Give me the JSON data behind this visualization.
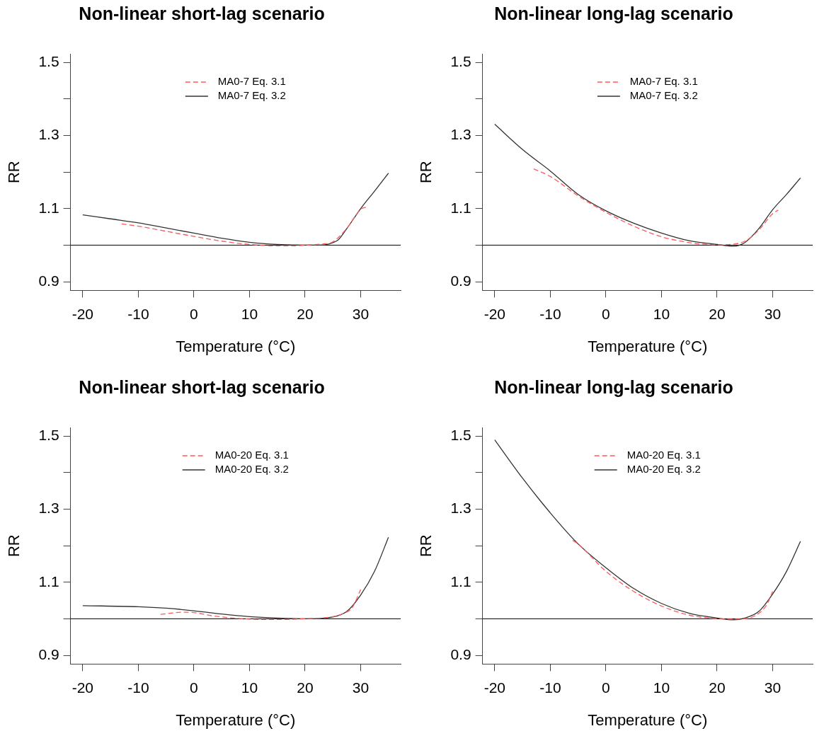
{
  "chart_data": [
    {
      "type": "line",
      "title": "Non-linear short-lag scenario",
      "xlabel": "Temperature (°C)",
      "ylabel": "RR",
      "xlim": [
        -22.2,
        37.2
      ],
      "ylim": [
        0.876,
        1.524
      ],
      "xticks": [
        -20,
        -10,
        0,
        10,
        20,
        30
      ],
      "yticks": [
        0.9,
        {
          "value": 1.0,
          "label": null
        },
        1.1,
        {
          "value": 1.2,
          "label": null
        },
        1.3,
        {
          "value": 1.4,
          "label": null
        },
        1.5
      ],
      "legend": "top",
      "ref_lines": [
        {
          "axis": "y",
          "value": 1,
          "color": "#000000"
        }
      ],
      "series": [
        {
          "name": "MA0-7 Eq. 3.1",
          "color": "#ff5a5a",
          "line_style": "dashed",
          "x": [
            -13,
            -10,
            -5,
            0,
            5,
            10,
            15,
            18,
            20,
            23,
            25,
            27.5,
            30,
            31
          ],
          "values": [
            1.058,
            1.052,
            1.038,
            1.024,
            1.011,
            1.002,
            0.998,
            0.998,
            1.0,
            1.003,
            1.009,
            1.046,
            1.098,
            1.104
          ]
        },
        {
          "name": "MA0-7 Eq. 3.2",
          "color": "#333333",
          "line_style": "solid",
          "x": [
            -20,
            -15,
            -10,
            -5,
            0,
            5,
            10,
            15,
            20,
            22.5,
            24,
            25,
            26,
            27.5,
            30,
            32.5,
            35
          ],
          "values": [
            1.083,
            1.072,
            1.061,
            1.047,
            1.033,
            1.019,
            1.008,
            1.002,
            1.0,
            1.0,
            1.002,
            1.007,
            1.015,
            1.045,
            1.1,
            1.148,
            1.197
          ]
        }
      ]
    },
    {
      "type": "line",
      "title": "Non-linear long-lag scenario",
      "xlabel": "Temperature (°C)",
      "ylabel": "RR",
      "xlim": [
        -22.2,
        37.2
      ],
      "ylim": [
        0.876,
        1.524
      ],
      "xticks": [
        -20,
        -10,
        0,
        10,
        20,
        30
      ],
      "yticks": [
        0.9,
        {
          "value": 1.0,
          "label": null
        },
        1.1,
        {
          "value": 1.2,
          "label": null
        },
        1.3,
        {
          "value": 1.4,
          "label": null
        },
        1.5
      ],
      "legend": "top",
      "ref_lines": [
        {
          "axis": "y",
          "value": 1,
          "color": "#000000"
        }
      ],
      "series": [
        {
          "name": "MA0-7 Eq. 3.1",
          "color": "#ff5a5a",
          "line_style": "dashed",
          "x": [
            -13,
            -10,
            -5,
            0,
            5,
            10,
            15,
            20,
            22.5,
            25,
            27.5,
            30,
            31
          ],
          "values": [
            1.209,
            1.188,
            1.135,
            1.09,
            1.052,
            1.023,
            1.007,
            1.001,
            1.002,
            1.011,
            1.041,
            1.086,
            1.096
          ]
        },
        {
          "name": "MA0-7 Eq. 3.2",
          "color": "#333333",
          "line_style": "solid",
          "x": [
            -20,
            -15,
            -10,
            -5,
            0,
            5,
            10,
            15,
            20,
            23,
            25,
            27.5,
            30,
            32.5,
            35
          ],
          "values": [
            1.331,
            1.262,
            1.203,
            1.139,
            1.094,
            1.06,
            1.033,
            1.012,
            1.002,
            0.997,
            1.007,
            1.045,
            1.097,
            1.139,
            1.184
          ]
        }
      ]
    },
    {
      "type": "line",
      "title": "Non-linear short-lag scenario",
      "xlabel": "Temperature (°C)",
      "ylabel": "RR",
      "xlim": [
        -22.2,
        37.2
      ],
      "ylim": [
        0.876,
        1.524
      ],
      "xticks": [
        -20,
        -10,
        0,
        10,
        20,
        30
      ],
      "yticks": [
        0.9,
        {
          "value": 1.0,
          "label": null
        },
        1.1,
        {
          "value": 1.2,
          "label": null
        },
        1.3,
        {
          "value": 1.4,
          "label": null
        },
        1.5
      ],
      "legend": "top",
      "ref_lines": [
        {
          "axis": "y",
          "value": 1,
          "color": "#000000"
        }
      ],
      "series": [
        {
          "name": "MA0-20 Eq. 3.1",
          "color": "#ff5a5a",
          "line_style": "dashed",
          "x": [
            -6,
            -2,
            0,
            3,
            7,
            10,
            15,
            20,
            25,
            27,
            28.5,
            30
          ],
          "values": [
            1.012,
            1.018,
            1.017,
            1.009,
            1.002,
            0.999,
            0.998,
            1.0,
            1.006,
            1.015,
            1.031,
            1.08
          ]
        },
        {
          "name": "MA0-20 Eq. 3.2",
          "color": "#333333",
          "line_style": "solid",
          "x": [
            -20,
            -10,
            -5,
            0,
            5,
            10,
            15,
            20,
            25,
            27.5,
            30,
            32.5,
            35
          ],
          "values": [
            1.036,
            1.033,
            1.029,
            1.022,
            1.013,
            1.006,
            1.002,
            1.0,
            1.005,
            1.02,
            1.065,
            1.13,
            1.223
          ]
        }
      ]
    },
    {
      "type": "line",
      "title": "Non-linear long-lag scenario",
      "xlabel": "Temperature (°C)",
      "ylabel": "RR",
      "xlim": [
        -22.2,
        37.2
      ],
      "ylim": [
        0.876,
        1.524
      ],
      "xticks": [
        -20,
        -10,
        0,
        10,
        20,
        30
      ],
      "yticks": [
        0.9,
        {
          "value": 1.0,
          "label": null
        },
        1.1,
        {
          "value": 1.2,
          "label": null
        },
        1.3,
        {
          "value": 1.4,
          "label": null
        },
        1.5
      ],
      "legend": "top",
      "ref_lines": [
        {
          "axis": "y",
          "value": 1,
          "color": "#000000"
        }
      ],
      "series": [
        {
          "name": "MA0-20 Eq. 3.1",
          "color": "#ff5a5a",
          "line_style": "dashed",
          "x": [
            -6,
            -5,
            0,
            5,
            10,
            15,
            20,
            22.5,
            25,
            27.5,
            29,
            30
          ],
          "values": [
            1.215,
            1.205,
            1.13,
            1.075,
            1.035,
            1.01,
            1.0,
            0.999,
            1.0,
            1.015,
            1.04,
            1.075
          ]
        },
        {
          "name": "MA0-20 Eq. 3.2",
          "color": "#333333",
          "line_style": "solid",
          "x": [
            -20,
            -15,
            -10,
            -5,
            0,
            5,
            10,
            15,
            20,
            23,
            25,
            27.5,
            30,
            32.5,
            35
          ],
          "values": [
            1.49,
            1.385,
            1.29,
            1.205,
            1.14,
            1.083,
            1.042,
            1.015,
            1.002,
            0.997,
            1.002,
            1.02,
            1.068,
            1.13,
            1.212
          ]
        }
      ]
    }
  ]
}
